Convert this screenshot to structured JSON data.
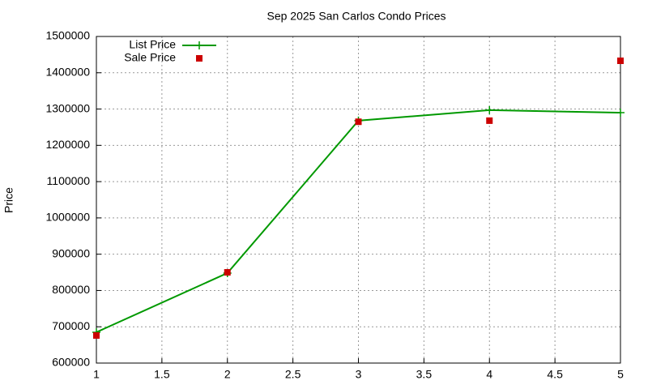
{
  "chart_data": {
    "type": "line",
    "title": "Sep 2025 San Carlos Condo Prices",
    "y_label": "Price",
    "x": [
      1,
      2,
      3,
      4,
      5
    ],
    "series": [
      {
        "name": "List Price",
        "color": "#009900",
        "style": "linespoints",
        "values": [
          685000,
          848000,
          1268000,
          1297000,
          1290000
        ]
      },
      {
        "name": "Sale Price",
        "color": "#cc0000",
        "style": "points",
        "values": [
          676000,
          850000,
          1265000,
          1268000,
          1433000
        ]
      }
    ],
    "xlim": [
      1,
      5
    ],
    "xticks": [
      1,
      1.5,
      2,
      2.5,
      3,
      3.5,
      4,
      4.5,
      5
    ],
    "ylim": [
      600000,
      1500000
    ],
    "yticks": [
      600000,
      700000,
      800000,
      900000,
      1000000,
      1100000,
      1200000,
      1300000,
      1400000,
      1500000
    ],
    "grid": true,
    "legend": "top-left"
  }
}
